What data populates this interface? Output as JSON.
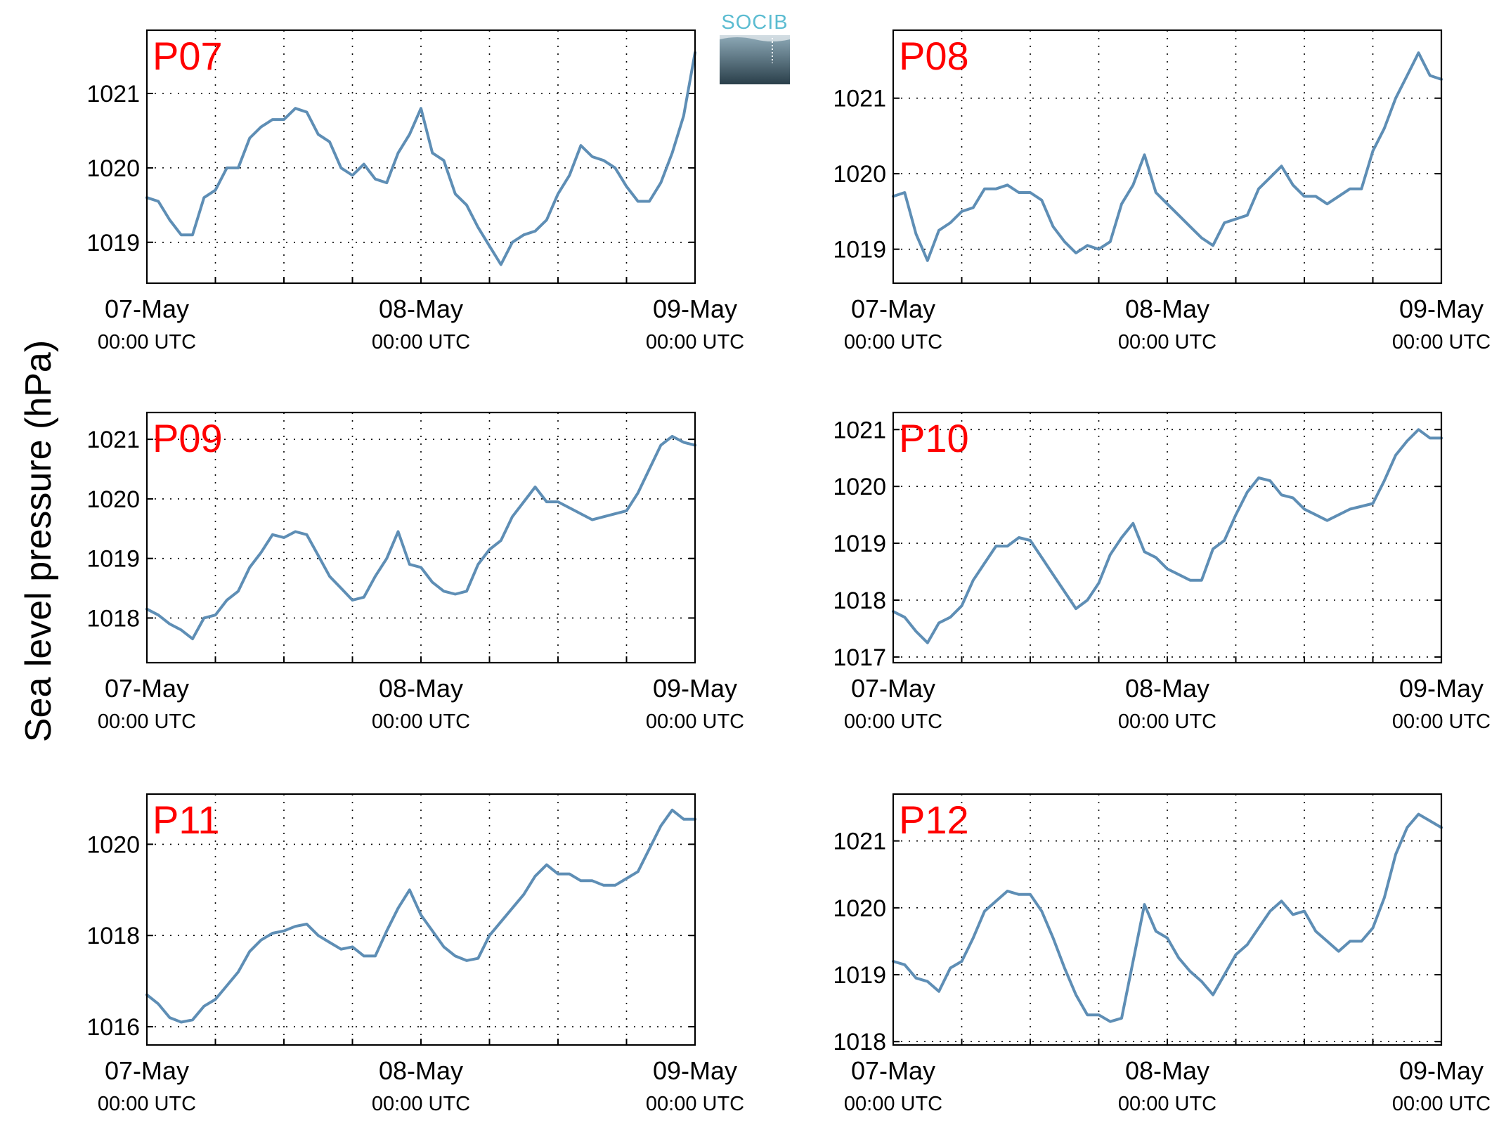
{
  "figure": {
    "ylabel": "Sea level pressure (hPa)",
    "logo_text": "SOCIB"
  },
  "colors": {
    "line": "#5e8eb5",
    "panel_label": "#ff0000",
    "logo_text": "#5bbcd1",
    "logo_top": "#8eaab8",
    "logo_bottom": "#2a3f4a"
  },
  "chart_data": [
    {
      "type": "line",
      "title": "P07",
      "ylim": [
        1018.45,
        1021.85
      ],
      "yticks": [
        1019,
        1020,
        1021
      ],
      "x_range": [
        "2023-05-07 00:00",
        "2023-05-09 00:00"
      ],
      "xticks": [
        {
          "date": "07-May",
          "time": "00:00 UTC"
        },
        {
          "date": "08-May",
          "time": "00:00 UTC"
        },
        {
          "date": "09-May",
          "time": "00:00 UTC"
        }
      ],
      "grid": true,
      "series": [
        {
          "x_hours": [
            0,
            1,
            2,
            3,
            4,
            5,
            6,
            7,
            8,
            9,
            10,
            11,
            12,
            13,
            14,
            15,
            16,
            17,
            18,
            19,
            20,
            21,
            22,
            23,
            24,
            25,
            26,
            27,
            28,
            29,
            30,
            31,
            32,
            33,
            34,
            35,
            36,
            37,
            38,
            39,
            40,
            41,
            42,
            43,
            44,
            45,
            46,
            47,
            48
          ],
          "values": [
            1019.6,
            1019.55,
            1019.3,
            1019.1,
            1019.1,
            1019.6,
            1019.7,
            1020.0,
            1020.0,
            1020.4,
            1020.55,
            1020.65,
            1020.65,
            1020.8,
            1020.75,
            1020.45,
            1020.35,
            1020.0,
            1019.9,
            1020.05,
            1019.85,
            1019.8,
            1020.2,
            1020.45,
            1020.8,
            1020.2,
            1020.1,
            1019.65,
            1019.5,
            1019.2,
            1018.95,
            1018.7,
            1019.0,
            1019.1,
            1019.15,
            1019.3,
            1019.65,
            1019.9,
            1020.3,
            1020.15,
            1020.1,
            1020.0,
            1019.75,
            1019.55,
            1019.55,
            1019.8,
            1020.2,
            1020.7,
            1021.55
          ]
        }
      ]
    },
    {
      "type": "line",
      "title": "P08",
      "ylim": [
        1018.55,
        1021.9
      ],
      "yticks": [
        1019,
        1020,
        1021
      ],
      "x_range": [
        "2023-05-07 00:00",
        "2023-05-09 00:00"
      ],
      "xticks": [
        {
          "date": "07-May",
          "time": "00:00 UTC"
        },
        {
          "date": "08-May",
          "time": "00:00 UTC"
        },
        {
          "date": "09-May",
          "time": "00:00 UTC"
        }
      ],
      "grid": true,
      "series": [
        {
          "x_hours": [
            0,
            1,
            2,
            3,
            4,
            5,
            6,
            7,
            8,
            9,
            10,
            11,
            12,
            13,
            14,
            15,
            16,
            17,
            18,
            19,
            20,
            21,
            22,
            23,
            24,
            25,
            26,
            27,
            28,
            29,
            30,
            31,
            32,
            33,
            34,
            35,
            36,
            37,
            38,
            39,
            40,
            41,
            42,
            43,
            44,
            45,
            46,
            47,
            48
          ],
          "values": [
            1019.7,
            1019.75,
            1019.2,
            1018.85,
            1019.25,
            1019.35,
            1019.5,
            1019.55,
            1019.8,
            1019.8,
            1019.85,
            1019.75,
            1019.75,
            1019.65,
            1019.3,
            1019.1,
            1018.95,
            1019.05,
            1019.0,
            1019.1,
            1019.6,
            1019.85,
            1020.25,
            1019.75,
            1019.6,
            1019.45,
            1019.3,
            1019.15,
            1019.05,
            1019.35,
            1019.4,
            1019.45,
            1019.8,
            1019.95,
            1020.1,
            1019.85,
            1019.7,
            1019.7,
            1019.6,
            1019.7,
            1019.8,
            1019.8,
            1020.3,
            1020.6,
            1021.0,
            1021.3,
            1021.6,
            1021.3,
            1021.25
          ]
        }
      ]
    },
    {
      "type": "line",
      "title": "P09",
      "ylim": [
        1017.25,
        1021.45
      ],
      "yticks": [
        1018,
        1019,
        1020,
        1021
      ],
      "x_range": [
        "2023-05-07 00:00",
        "2023-05-09 00:00"
      ],
      "xticks": [
        {
          "date": "07-May",
          "time": "00:00 UTC"
        },
        {
          "date": "08-May",
          "time": "00:00 UTC"
        },
        {
          "date": "09-May",
          "time": "00:00 UTC"
        }
      ],
      "grid": true,
      "series": [
        {
          "x_hours": [
            0,
            1,
            2,
            3,
            4,
            5,
            6,
            7,
            8,
            9,
            10,
            11,
            12,
            13,
            14,
            15,
            16,
            17,
            18,
            19,
            20,
            21,
            22,
            23,
            24,
            25,
            26,
            27,
            28,
            29,
            30,
            31,
            32,
            33,
            34,
            35,
            36,
            37,
            38,
            39,
            40,
            41,
            42,
            43,
            44,
            45,
            46,
            47,
            48
          ],
          "values": [
            1018.15,
            1018.05,
            1017.9,
            1017.8,
            1017.65,
            1018.0,
            1018.05,
            1018.3,
            1018.45,
            1018.85,
            1019.1,
            1019.4,
            1019.35,
            1019.45,
            1019.4,
            1019.05,
            1018.7,
            1018.5,
            1018.3,
            1018.35,
            1018.7,
            1019.0,
            1019.45,
            1018.9,
            1018.85,
            1018.6,
            1018.45,
            1018.4,
            1018.45,
            1018.9,
            1019.15,
            1019.3,
            1019.7,
            1019.95,
            1020.2,
            1019.95,
            1019.95,
            1019.85,
            1019.75,
            1019.65,
            1019.7,
            1019.75,
            1019.8,
            1020.1,
            1020.5,
            1020.9,
            1021.05,
            1020.95,
            1020.9
          ]
        }
      ]
    },
    {
      "type": "line",
      "title": "P10",
      "ylim": [
        1016.9,
        1021.3
      ],
      "yticks": [
        1017,
        1018,
        1019,
        1020,
        1021
      ],
      "x_range": [
        "2023-05-07 00:00",
        "2023-05-09 00:00"
      ],
      "xticks": [
        {
          "date": "07-May",
          "time": "00:00 UTC"
        },
        {
          "date": "08-May",
          "time": "00:00 UTC"
        },
        {
          "date": "09-May",
          "time": "00:00 UTC"
        }
      ],
      "grid": true,
      "series": [
        {
          "x_hours": [
            0,
            1,
            2,
            3,
            4,
            5,
            6,
            7,
            8,
            9,
            10,
            11,
            12,
            13,
            14,
            15,
            16,
            17,
            18,
            19,
            20,
            21,
            22,
            23,
            24,
            25,
            26,
            27,
            28,
            29,
            30,
            31,
            32,
            33,
            34,
            35,
            36,
            37,
            38,
            39,
            40,
            41,
            42,
            43,
            44,
            45,
            46,
            47,
            48
          ],
          "values": [
            1017.8,
            1017.7,
            1017.45,
            1017.25,
            1017.6,
            1017.7,
            1017.9,
            1018.35,
            1018.65,
            1018.95,
            1018.95,
            1019.1,
            1019.05,
            1018.75,
            1018.45,
            1018.15,
            1017.85,
            1018.0,
            1018.3,
            1018.8,
            1019.1,
            1019.35,
            1018.85,
            1018.75,
            1018.55,
            1018.45,
            1018.35,
            1018.35,
            1018.9,
            1019.05,
            1019.5,
            1019.9,
            1020.15,
            1020.1,
            1019.85,
            1019.8,
            1019.6,
            1019.5,
            1019.4,
            1019.5,
            1019.6,
            1019.65,
            1019.7,
            1020.1,
            1020.55,
            1020.8,
            1021.0,
            1020.85,
            1020.85
          ]
        }
      ]
    },
    {
      "type": "line",
      "title": "P11",
      "ylim": [
        1015.6,
        1021.1
      ],
      "yticks": [
        1016,
        1018,
        1020
      ],
      "x_range": [
        "2023-05-07 00:00",
        "2023-05-09 00:00"
      ],
      "xticks": [
        {
          "date": "07-May",
          "time": "00:00 UTC"
        },
        {
          "date": "08-May",
          "time": "00:00 UTC"
        },
        {
          "date": "09-May",
          "time": "00:00 UTC"
        }
      ],
      "grid": true,
      "series": [
        {
          "x_hours": [
            0,
            1,
            2,
            3,
            4,
            5,
            6,
            7,
            8,
            9,
            10,
            11,
            12,
            13,
            14,
            15,
            16,
            17,
            18,
            19,
            20,
            21,
            22,
            23,
            24,
            25,
            26,
            27,
            28,
            29,
            30,
            31,
            32,
            33,
            34,
            35,
            36,
            37,
            38,
            39,
            40,
            41,
            42,
            43,
            44,
            45,
            46,
            47,
            48
          ],
          "values": [
            1016.7,
            1016.5,
            1016.2,
            1016.1,
            1016.15,
            1016.45,
            1016.6,
            1016.9,
            1017.2,
            1017.65,
            1017.9,
            1018.05,
            1018.1,
            1018.2,
            1018.25,
            1018.0,
            1017.85,
            1017.7,
            1017.75,
            1017.55,
            1017.55,
            1018.1,
            1018.6,
            1019.0,
            1018.45,
            1018.1,
            1017.75,
            1017.55,
            1017.45,
            1017.5,
            1018.0,
            1018.3,
            1018.6,
            1018.9,
            1019.3,
            1019.55,
            1019.35,
            1019.35,
            1019.2,
            1019.2,
            1019.1,
            1019.1,
            1019.25,
            1019.4,
            1019.9,
            1020.4,
            1020.75,
            1020.55,
            1020.55
          ]
        }
      ]
    },
    {
      "type": "line",
      "title": "P12",
      "ylim": [
        1017.95,
        1021.7
      ],
      "yticks": [
        1018,
        1019,
        1020,
        1021
      ],
      "x_range": [
        "2023-05-07 00:00",
        "2023-05-09 00:00"
      ],
      "xticks": [
        {
          "date": "07-May",
          "time": "00:00 UTC"
        },
        {
          "date": "08-May",
          "time": "00:00 UTC"
        },
        {
          "date": "09-May",
          "time": "00:00 UTC"
        }
      ],
      "grid": true,
      "series": [
        {
          "x_hours": [
            0,
            1,
            2,
            3,
            4,
            5,
            6,
            7,
            8,
            9,
            10,
            11,
            12,
            13,
            14,
            15,
            16,
            17,
            18,
            19,
            20,
            21,
            22,
            23,
            24,
            25,
            26,
            27,
            28,
            29,
            30,
            31,
            32,
            33,
            34,
            35,
            36,
            37,
            38,
            39,
            40,
            41,
            42,
            43,
            44,
            45,
            46,
            47,
            48
          ],
          "values": [
            1019.2,
            1019.15,
            1018.95,
            1018.9,
            1018.75,
            1019.1,
            1019.2,
            1019.55,
            1019.95,
            1020.1,
            1020.25,
            1020.2,
            1020.2,
            1019.95,
            1019.55,
            1019.1,
            1018.7,
            1018.4,
            1018.4,
            1018.3,
            1018.35,
            1019.2,
            1020.05,
            1019.65,
            1019.55,
            1019.25,
            1019.05,
            1018.9,
            1018.7,
            1019.0,
            1019.3,
            1019.45,
            1019.7,
            1019.95,
            1020.1,
            1019.9,
            1019.95,
            1019.65,
            1019.5,
            1019.35,
            1019.5,
            1019.5,
            1019.7,
            1020.15,
            1020.8,
            1021.2,
            1021.4,
            1021.3,
            1021.2
          ]
        }
      ]
    }
  ]
}
